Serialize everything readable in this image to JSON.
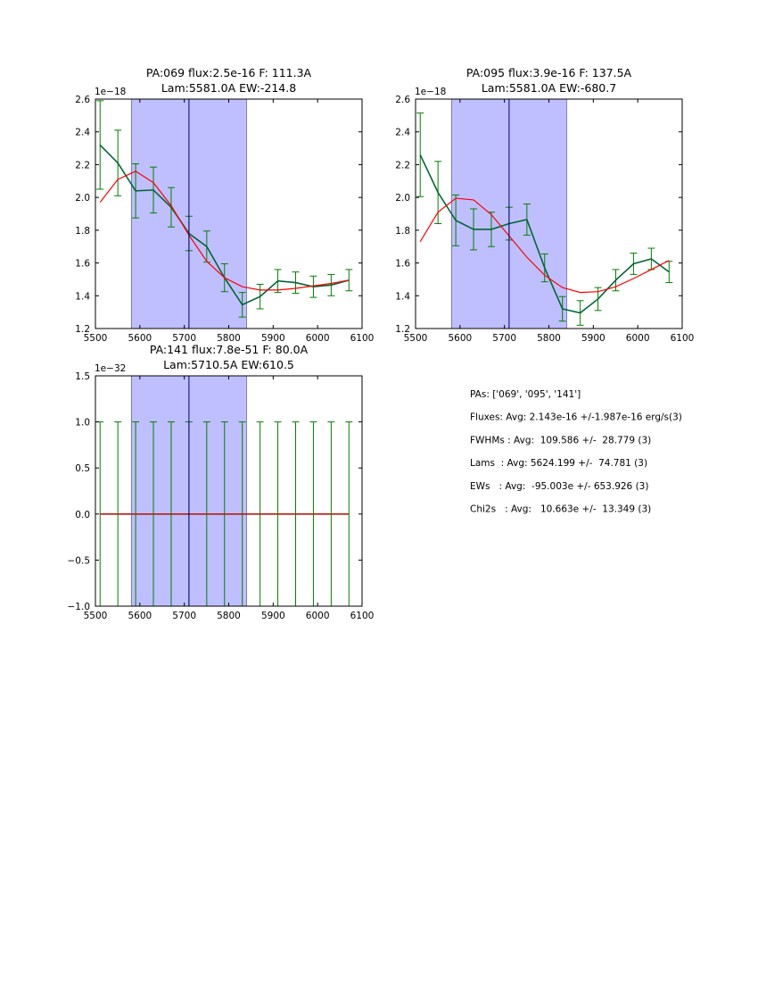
{
  "chart_data": [
    {
      "type": "line",
      "title": [
        "PA:069 flux:2.5e-16 F: 111.3A",
        "Lam:5581.0A EW:-214.8"
      ],
      "offset_label": "1e−18",
      "xlim": [
        5500,
        6100
      ],
      "ylim": [
        1.2,
        2.6
      ],
      "xticks": [
        "5500",
        "5600",
        "5700",
        "5800",
        "5900",
        "6000",
        "6100"
      ],
      "yticks": [
        "1.2",
        "1.4",
        "1.6",
        "1.8",
        "2.0",
        "2.2",
        "2.4",
        "2.6"
      ],
      "shaded_band": [
        5581.0,
        5840.0
      ],
      "vertical_line": 5710.5,
      "series": [
        {
          "x": [
            5510.5,
            5550.5,
            5590.5,
            5630.5,
            5670.5,
            5710.5,
            5750.5,
            5790.5,
            5830.5,
            5870.5,
            5910.5,
            5950.5,
            5990.5,
            6030.5,
            6070.5
          ],
          "y": [
            2.32,
            2.21,
            2.04,
            2.045,
            1.94,
            1.78,
            1.7,
            1.51,
            1.345,
            1.395,
            1.49,
            1.48,
            1.455,
            1.465,
            1.495
          ],
          "err": [
            0.27,
            0.2,
            0.165,
            0.14,
            0.12,
            0.105,
            0.095,
            0.085,
            0.075,
            0.075,
            0.07,
            0.065,
            0.065,
            0.065,
            0.065
          ]
        },
        {
          "x": [
            5510.5,
            5550.5,
            5590.5,
            5630.5,
            5670.5,
            5710.5,
            5750.5,
            5790.5,
            5830.5,
            5870.5,
            5910.5,
            5950.5,
            5990.5,
            6030.5,
            6070.5
          ],
          "y": [
            1.97,
            2.11,
            2.16,
            2.09,
            1.95,
            1.77,
            1.61,
            1.51,
            1.455,
            1.435,
            1.435,
            1.445,
            1.46,
            1.475,
            1.495
          ]
        }
      ]
    },
    {
      "type": "line",
      "title": [
        "PA:095 flux:3.9e-16 F: 137.5A",
        "Lam:5581.0A EW:-680.7"
      ],
      "offset_label": "1e−18",
      "xlim": [
        5500,
        6100
      ],
      "ylim": [
        1.2,
        2.6
      ],
      "xticks": [
        "5500",
        "5600",
        "5700",
        "5800",
        "5900",
        "6000",
        "6100"
      ],
      "yticks": [
        "1.2",
        "1.4",
        "1.6",
        "1.8",
        "2.0",
        "2.2",
        "2.4",
        "2.6"
      ],
      "shaded_band": [
        5581.0,
        5840.0
      ],
      "vertical_line": 5710.5,
      "series": [
        {
          "x": [
            5510.5,
            5550.5,
            5590.5,
            5630.5,
            5670.5,
            5710.5,
            5750.5,
            5790.5,
            5830.5,
            5870.5,
            5910.5,
            5950.5,
            5990.5,
            6030.5,
            6070.5
          ],
          "y": [
            2.26,
            2.03,
            1.86,
            1.805,
            1.805,
            1.84,
            1.865,
            1.57,
            1.32,
            1.295,
            1.38,
            1.495,
            1.595,
            1.625,
            1.545
          ],
          "err": [
            0.255,
            0.19,
            0.155,
            0.125,
            0.105,
            0.1,
            0.095,
            0.085,
            0.075,
            0.075,
            0.07,
            0.065,
            0.065,
            0.065,
            0.065
          ]
        },
        {
          "x": [
            5510.5,
            5550.5,
            5590.5,
            5630.5,
            5670.5,
            5710.5,
            5750.5,
            5790.5,
            5830.5,
            5870.5,
            5910.5,
            5950.5,
            5990.5,
            6030.5,
            6070.5
          ],
          "y": [
            1.73,
            1.91,
            1.995,
            1.985,
            1.895,
            1.765,
            1.635,
            1.525,
            1.45,
            1.42,
            1.425,
            1.455,
            1.505,
            1.56,
            1.615
          ]
        }
      ]
    },
    {
      "type": "line",
      "title": [
        "PA:141 flux:7.8e-51 F: 80.0A",
        "Lam:5710.5A EW:610.5"
      ],
      "offset_label": "1e−32",
      "xlim": [
        5500,
        6100
      ],
      "ylim": [
        -1.0,
        1.5
      ],
      "xticks": [
        "5500",
        "5600",
        "5700",
        "5800",
        "5900",
        "6000",
        "6100"
      ],
      "yticks": [
        "−1.0",
        "−0.5",
        "0.0",
        "0.5",
        "1.0",
        "1.5"
      ],
      "shaded_band": [
        5581.0,
        5840.0
      ],
      "vertical_line": 5710.5,
      "series": [
        {
          "x": [
            5510.5,
            5550.5,
            5590.5,
            5630.5,
            5670.5,
            5710.5,
            5750.5,
            5790.5,
            5830.5,
            5870.5,
            5910.5,
            5950.5,
            5990.5,
            6030.5,
            6070.5
          ],
          "y": [
            0,
            0,
            0,
            0,
            0,
            0,
            0,
            0,
            0,
            0,
            0,
            0,
            0,
            0,
            0
          ],
          "err": [
            1,
            1,
            1,
            1,
            1,
            1,
            1,
            1,
            1,
            1,
            1,
            1,
            1,
            1,
            1
          ]
        },
        {
          "x": [
            5510.5,
            5550.5,
            5590.5,
            5630.5,
            5670.5,
            5710.5,
            5750.5,
            5790.5,
            5830.5,
            5870.5,
            5910.5,
            5950.5,
            5990.5,
            6030.5,
            6070.5
          ],
          "y": [
            0,
            0,
            0,
            0,
            0,
            0,
            0,
            0,
            0,
            0,
            0,
            0,
            0,
            0,
            0
          ]
        }
      ]
    }
  ],
  "summary": {
    "lines": [
      "PAs: ['069', '095', '141']",
      "Fluxes: Avg: 2.143e-16 +/-1.987e-16 erg/s(3)",
      "FWHMs : Avg:  109.586 +/-  28.779 (3)",
      "Lams  : Avg: 5624.199 +/-  74.781 (3)",
      "EWs   : Avg:  -95.003e +/- 653.926 (3)",
      "Chi2s   : Avg:   10.663e +/-  13.349 (3)"
    ]
  },
  "colors": {
    "data_line": "#006633",
    "error_bar": "#008000",
    "fit_line": "#ff0000",
    "band_fill": "#bfbfff",
    "band_edge": "#6060d0",
    "center_line": "#000080"
  }
}
